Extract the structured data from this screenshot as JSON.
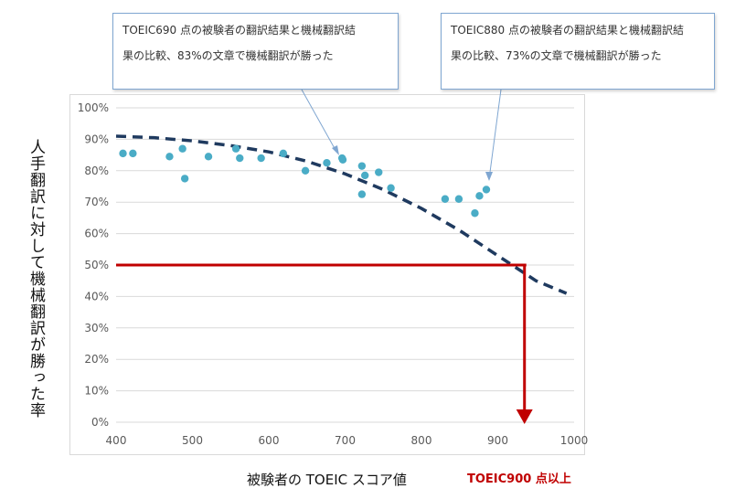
{
  "callouts": [
    {
      "line1": "TOEIC690 点の被験者の翻訳結果と機械翻訳結",
      "line2": "果の比較、83%の文章で機械翻訳が勝った"
    },
    {
      "line1": "TOEIC880 点の被験者の翻訳結果と機械翻訳結",
      "line2": "果の比較、73%の文章で機械翻訳が勝った"
    }
  ],
  "target_label": "TOEIC900 点以上",
  "colors": {
    "points": "#4aacc6",
    "trend": "#1f3a5f",
    "threshold": "#c00000",
    "grid": "#d9d9d9"
  },
  "chart_data": {
    "type": "scatter",
    "xlabel": "被験者の TOEIC スコア値",
    "ylabel": "人手翻訳に対して機械翻訳が勝った率",
    "xlim": [
      400,
      1000
    ],
    "ylim": [
      0,
      100
    ],
    "x_ticks": [
      "400",
      "500",
      "600",
      "700",
      "800",
      "900",
      "1000"
    ],
    "y_ticks": [
      "0%",
      "10%",
      "20%",
      "30%",
      "40%",
      "50%",
      "60%",
      "70%",
      "80%",
      "90%",
      "100%"
    ],
    "grid": "horizontal",
    "series": [
      {
        "points": [
          [
            409,
            85.5
          ],
          [
            422,
            85.5
          ],
          [
            470,
            84.5
          ],
          [
            487,
            87
          ],
          [
            490,
            77.5
          ],
          [
            521,
            84.5
          ],
          [
            557,
            87
          ],
          [
            562,
            84
          ],
          [
            590,
            84
          ],
          [
            619,
            85.5
          ],
          [
            648,
            80
          ],
          [
            676,
            82.5
          ],
          [
            696,
            84
          ],
          [
            697,
            83.5
          ],
          [
            722,
            81.5
          ],
          [
            722,
            72.5
          ],
          [
            726,
            78.5
          ],
          [
            744,
            79.5
          ],
          [
            760,
            74.5
          ],
          [
            831,
            71
          ],
          [
            849,
            71
          ],
          [
            870,
            66.5
          ],
          [
            876,
            72
          ],
          [
            885,
            74
          ]
        ]
      }
    ],
    "trendline": {
      "type": "polynomial",
      "points": [
        [
          400,
          91
        ],
        [
          450,
          90.5
        ],
        [
          500,
          89.5
        ],
        [
          550,
          88
        ],
        [
          600,
          86
        ],
        [
          650,
          83
        ],
        [
          700,
          79
        ],
        [
          750,
          74
        ],
        [
          800,
          68
        ],
        [
          850,
          61
        ],
        [
          900,
          53
        ],
        [
          950,
          45
        ],
        [
          990,
          41
        ]
      ]
    },
    "threshold": {
      "y": 50,
      "x_start": 400,
      "x_end": 935
    }
  }
}
